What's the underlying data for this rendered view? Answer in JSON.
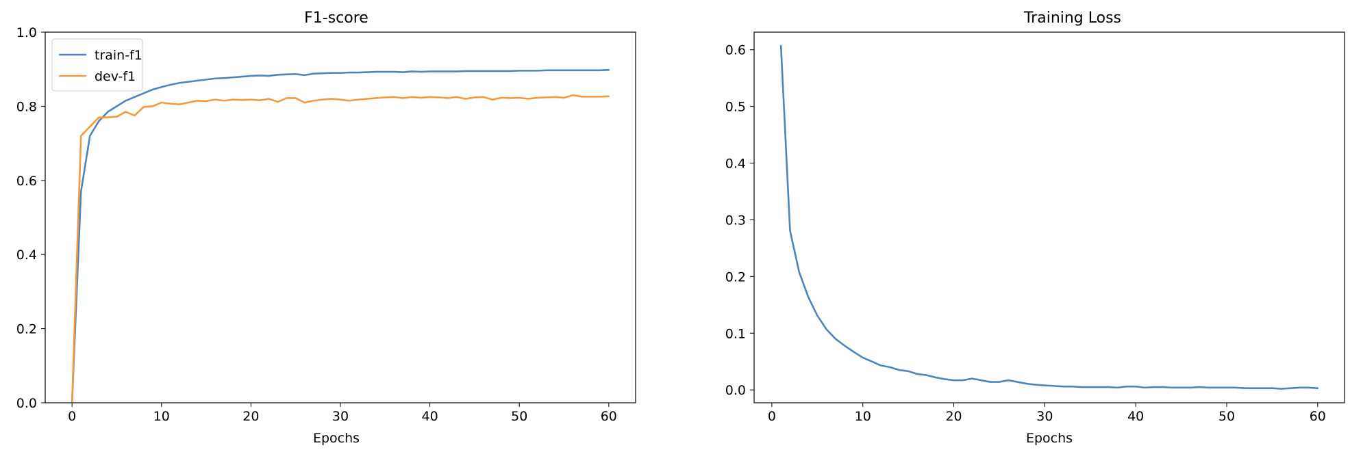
{
  "chart_data": [
    {
      "type": "line",
      "title": "F1-score",
      "xlabel": "Epochs",
      "ylabel": "",
      "xlim": [
        -3,
        63
      ],
      "ylim": [
        0.0,
        1.0
      ],
      "xticks": [
        0,
        10,
        20,
        30,
        40,
        50,
        60
      ],
      "yticks": [
        0.0,
        0.2,
        0.4,
        0.6,
        0.8,
        1.0
      ],
      "ytick_labels": [
        "0.0",
        "0.2",
        "0.4",
        "0.6",
        "0.8",
        "1.0"
      ],
      "grid": false,
      "legend": "top-left",
      "x": [
        0,
        1,
        2,
        3,
        4,
        5,
        6,
        7,
        8,
        9,
        10,
        11,
        12,
        13,
        14,
        15,
        16,
        17,
        18,
        19,
        20,
        21,
        22,
        23,
        24,
        25,
        26,
        27,
        28,
        29,
        30,
        31,
        32,
        33,
        34,
        35,
        36,
        37,
        38,
        39,
        40,
        41,
        42,
        43,
        44,
        45,
        46,
        47,
        48,
        49,
        50,
        51,
        52,
        53,
        54,
        55,
        56,
        57,
        58,
        59,
        60
      ],
      "series": [
        {
          "name": "train-f1",
          "color": "#4c84bf",
          "values": [
            0.0,
            0.57,
            0.72,
            0.76,
            0.785,
            0.8,
            0.815,
            0.825,
            0.835,
            0.845,
            0.852,
            0.858,
            0.863,
            0.866,
            0.869,
            0.872,
            0.875,
            0.876,
            0.878,
            0.88,
            0.882,
            0.883,
            0.882,
            0.885,
            0.886,
            0.887,
            0.884,
            0.888,
            0.889,
            0.89,
            0.89,
            0.891,
            0.891,
            0.892,
            0.893,
            0.893,
            0.893,
            0.892,
            0.894,
            0.893,
            0.894,
            0.894,
            0.894,
            0.894,
            0.895,
            0.895,
            0.895,
            0.895,
            0.895,
            0.895,
            0.896,
            0.896,
            0.896,
            0.897,
            0.897,
            0.897,
            0.897,
            0.897,
            0.897,
            0.897,
            0.898
          ]
        },
        {
          "name": "dev-f1",
          "color": "#f39a3d",
          "values": [
            0.0,
            0.72,
            0.745,
            0.77,
            0.77,
            0.772,
            0.785,
            0.775,
            0.798,
            0.8,
            0.81,
            0.807,
            0.805,
            0.81,
            0.815,
            0.814,
            0.818,
            0.815,
            0.818,
            0.817,
            0.818,
            0.816,
            0.82,
            0.812,
            0.822,
            0.822,
            0.81,
            0.815,
            0.818,
            0.82,
            0.818,
            0.815,
            0.818,
            0.82,
            0.822,
            0.824,
            0.825,
            0.822,
            0.825,
            0.823,
            0.825,
            0.824,
            0.822,
            0.825,
            0.82,
            0.824,
            0.825,
            0.818,
            0.823,
            0.822,
            0.823,
            0.82,
            0.823,
            0.824,
            0.825,
            0.823,
            0.83,
            0.826,
            0.826,
            0.826,
            0.827
          ]
        }
      ]
    },
    {
      "type": "line",
      "title": "Training Loss",
      "xlabel": "Epochs",
      "ylabel": "",
      "xlim": [
        -1.95,
        62.95
      ],
      "ylim": [
        -0.0227,
        0.631
      ],
      "xticks": [
        0,
        10,
        20,
        30,
        40,
        50,
        60
      ],
      "yticks": [
        0.0,
        0.1,
        0.2,
        0.3,
        0.4,
        0.5,
        0.6
      ],
      "ytick_labels": [
        "0.0",
        "0.1",
        "0.2",
        "0.3",
        "0.4",
        "0.5",
        "0.6"
      ],
      "grid": false,
      "x": [
        1,
        2,
        3,
        4,
        5,
        6,
        7,
        8,
        9,
        10,
        11,
        12,
        13,
        14,
        15,
        16,
        17,
        18,
        19,
        20,
        21,
        22,
        23,
        24,
        25,
        26,
        27,
        28,
        29,
        30,
        31,
        32,
        33,
        34,
        35,
        36,
        37,
        38,
        39,
        40,
        41,
        42,
        43,
        44,
        45,
        46,
        47,
        48,
        49,
        50,
        51,
        52,
        53,
        54,
        55,
        56,
        57,
        58,
        59,
        60
      ],
      "series": [
        {
          "color": "#4c84bf",
          "values": [
            0.607,
            0.281,
            0.208,
            0.164,
            0.131,
            0.107,
            0.09,
            0.078,
            0.067,
            0.057,
            0.05,
            0.043,
            0.04,
            0.035,
            0.033,
            0.028,
            0.026,
            0.022,
            0.019,
            0.017,
            0.017,
            0.02,
            0.017,
            0.014,
            0.014,
            0.017,
            0.014,
            0.011,
            0.009,
            0.008,
            0.007,
            0.006,
            0.006,
            0.005,
            0.005,
            0.005,
            0.005,
            0.004,
            0.006,
            0.006,
            0.004,
            0.005,
            0.005,
            0.004,
            0.004,
            0.004,
            0.005,
            0.004,
            0.004,
            0.004,
            0.004,
            0.003,
            0.003,
            0.003,
            0.003,
            0.002,
            0.003,
            0.004,
            0.004,
            0.003
          ]
        }
      ]
    }
  ]
}
